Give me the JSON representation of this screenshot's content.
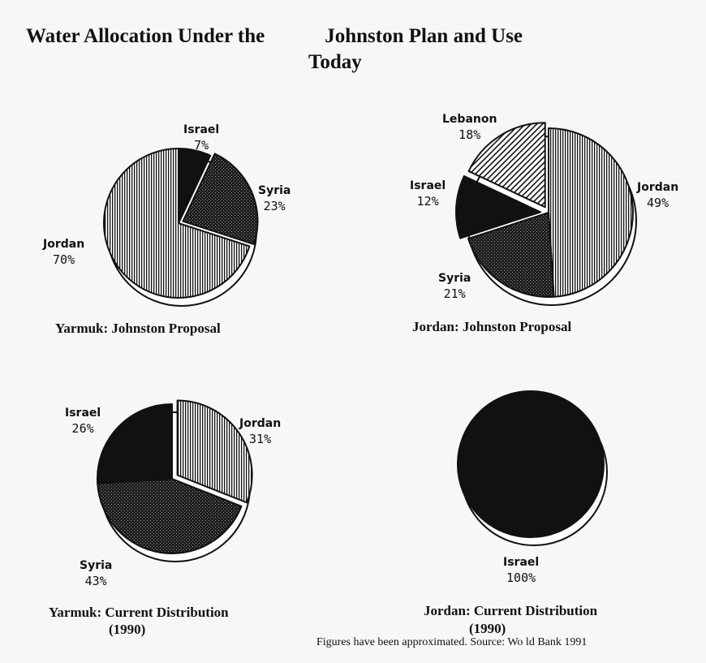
{
  "title": {
    "line1_a": "Water Allocation Under the",
    "line1_b": "Johnston Plan and Use",
    "line2": "Today"
  },
  "source_note": "Figures have been approximated. Source: Wo ld Bank 1991",
  "colors": {
    "background": "#f7f7f7",
    "ink": "#111111"
  },
  "chart_data": [
    {
      "type": "pie",
      "title": "Yarmuk: Johnston Proposal",
      "slices": [
        {
          "name": "Israel",
          "value": 7,
          "label": "7%",
          "fill": "solid"
        },
        {
          "name": "Syria",
          "value": 23,
          "label": "23%",
          "fill": "dots"
        },
        {
          "name": "Jordan",
          "value": 70,
          "label": "70%",
          "fill": "vertical-lines"
        }
      ]
    },
    {
      "type": "pie",
      "title": "Jordan: Johnston Proposal",
      "slices": [
        {
          "name": "Jordan",
          "value": 49,
          "label": "49%",
          "fill": "vertical-lines"
        },
        {
          "name": "Syria",
          "value": 21,
          "label": "21%",
          "fill": "dots"
        },
        {
          "name": "Israel",
          "value": 12,
          "label": "12%",
          "fill": "solid"
        },
        {
          "name": "Lebanon",
          "value": 18,
          "label": "18%",
          "fill": "diagonal-lines"
        }
      ]
    },
    {
      "type": "pie",
      "title": "Yarmuk: Current Distribution",
      "subtitle": "(1990)",
      "slices": [
        {
          "name": "Jordan",
          "value": 31,
          "label": "31%",
          "fill": "vertical-lines"
        },
        {
          "name": "Syria",
          "value": 43,
          "label": "43%",
          "fill": "dots"
        },
        {
          "name": "Israel",
          "value": 26,
          "label": "26%",
          "fill": "solid"
        }
      ]
    },
    {
      "type": "pie",
      "title": "Jordan: Current Distribution",
      "subtitle": "(1990)",
      "slices": [
        {
          "name": "Israel",
          "value": 100,
          "label": "100%",
          "fill": "solid"
        }
      ]
    }
  ]
}
